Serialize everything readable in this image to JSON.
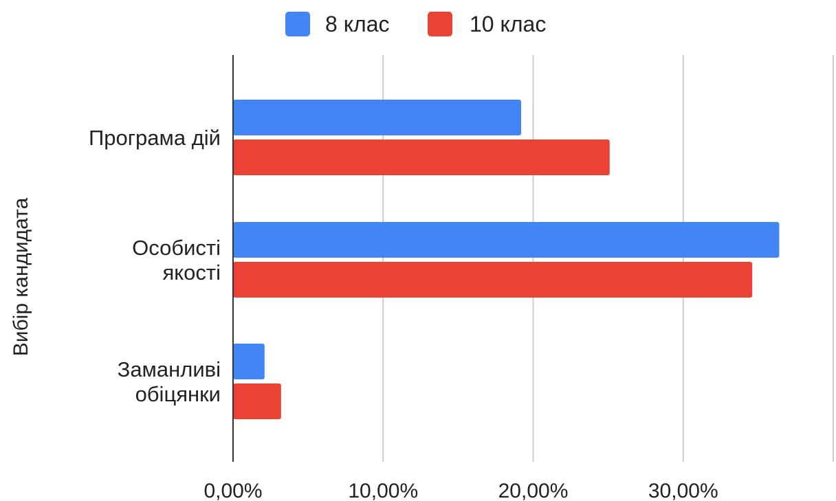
{
  "chart_data": {
    "type": "bar",
    "orientation": "horizontal",
    "title": "",
    "xlabel": "",
    "ylabel": "Вибір кандидата",
    "categories": [
      [
        "Програма дій"
      ],
      [
        "Особисті",
        "якості"
      ],
      [
        "Заманливі",
        "обіцянки"
      ]
    ],
    "series": [
      {
        "name": "8 клас",
        "color": "#4285f4",
        "values": [
          19.2,
          36.4,
          2.1
        ]
      },
      {
        "name": "10 клас",
        "color": "#ea4335",
        "values": [
          25.1,
          34.6,
          3.2
        ]
      }
    ],
    "xlim": [
      0,
      40
    ],
    "x_ticks": [
      {
        "value": 0,
        "label": "0,00%"
      },
      {
        "value": 10,
        "label": "10,00%"
      },
      {
        "value": 20,
        "label": "20,00%"
      },
      {
        "value": 30,
        "label": "30,00%"
      },
      {
        "value": 40,
        "label": ""
      }
    ],
    "grid": true,
    "legend_position": "top"
  }
}
